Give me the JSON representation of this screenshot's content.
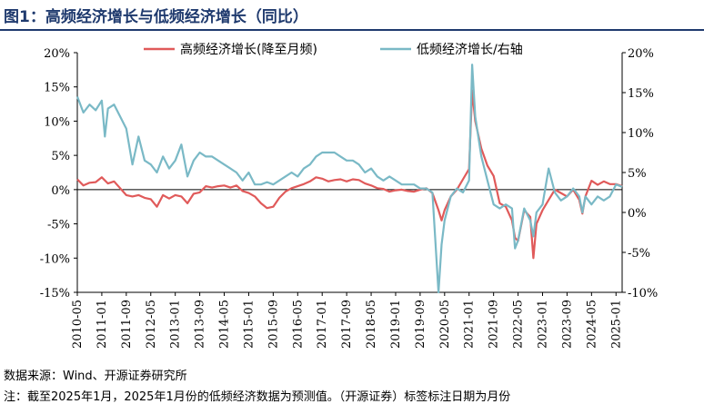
{
  "header": {
    "title": "图1：高频经济增长与低频经济增长（同比）"
  },
  "footer": {
    "source": "数据来源：Wind、开源证券研究所",
    "footnote": "注：截至2025年1月，2025年1月份的低频经济数据为预测值。（开源证券）标签标注日期为月份"
  },
  "chart_data": {
    "type": "line",
    "title": "",
    "xlabel": "",
    "ylabel": "",
    "ylabel_right": "",
    "x_ticks": [
      "2010-05",
      "2011-01",
      "2011-09",
      "2012-05",
      "2013-01",
      "2013-09",
      "2014-05",
      "2015-01",
      "2015-09",
      "2016-05",
      "2017-01",
      "2017-09",
      "2018-05",
      "2019-01",
      "2019-09",
      "2020-05",
      "2021-01",
      "2021-09",
      "2022-05",
      "2023-01",
      "2023-09",
      "2024-05",
      "2025-01"
    ],
    "ylim_left": [
      -15,
      20
    ],
    "ylim_right": [
      -10,
      20
    ],
    "y_ticks_left": [
      -15,
      -10,
      -5,
      0,
      5,
      10,
      15,
      20
    ],
    "y_ticks_right": [
      -10,
      -5,
      0,
      5,
      10,
      15,
      20
    ],
    "y_tick_labels_left": [
      "-15%",
      "-10%",
      "-5%",
      "0%",
      "5%",
      "10%",
      "15%",
      "20%"
    ],
    "y_tick_labels_right": [
      "-10%",
      "-5%",
      "0%",
      "5%",
      "10%",
      "15%",
      "20%"
    ],
    "grid": false,
    "legend_position": "top",
    "series": [
      {
        "name": "高频经济增长(降至月频)",
        "axis": "left",
        "color": "#e05a5a",
        "points": [
          [
            "2010-05",
            1.5
          ],
          [
            "2010-07",
            0.6
          ],
          [
            "2010-09",
            1.0
          ],
          [
            "2010-11",
            1.1
          ],
          [
            "2011-01",
            1.8
          ],
          [
            "2011-03",
            0.9
          ],
          [
            "2011-05",
            1.2
          ],
          [
            "2011-07",
            0.2
          ],
          [
            "2011-09",
            -0.8
          ],
          [
            "2011-11",
            -1.0
          ],
          [
            "2012-01",
            -0.8
          ],
          [
            "2012-03",
            -1.2
          ],
          [
            "2012-05",
            -1.4
          ],
          [
            "2012-07",
            -2.5
          ],
          [
            "2012-09",
            -0.8
          ],
          [
            "2012-11",
            -1.3
          ],
          [
            "2013-01",
            -0.8
          ],
          [
            "2013-03",
            -1.0
          ],
          [
            "2013-05",
            -2.0
          ],
          [
            "2013-07",
            -0.6
          ],
          [
            "2013-09",
            -0.4
          ],
          [
            "2013-11",
            0.5
          ],
          [
            "2014-01",
            0.3
          ],
          [
            "2014-03",
            0.5
          ],
          [
            "2014-05",
            0.6
          ],
          [
            "2014-07",
            0.3
          ],
          [
            "2014-09",
            0.6
          ],
          [
            "2014-11",
            -0.2
          ],
          [
            "2015-01",
            -0.5
          ],
          [
            "2015-03",
            -1.0
          ],
          [
            "2015-05",
            -2.0
          ],
          [
            "2015-07",
            -2.7
          ],
          [
            "2015-09",
            -2.5
          ],
          [
            "2015-11",
            -1.2
          ],
          [
            "2016-01",
            -0.3
          ],
          [
            "2016-03",
            0.2
          ],
          [
            "2016-05",
            0.5
          ],
          [
            "2016-07",
            0.8
          ],
          [
            "2016-09",
            1.2
          ],
          [
            "2016-11",
            1.8
          ],
          [
            "2017-01",
            1.6
          ],
          [
            "2017-03",
            1.2
          ],
          [
            "2017-05",
            1.4
          ],
          [
            "2017-07",
            1.5
          ],
          [
            "2017-09",
            1.2
          ],
          [
            "2017-11",
            1.5
          ],
          [
            "2018-01",
            1.4
          ],
          [
            "2018-03",
            0.9
          ],
          [
            "2018-05",
            0.6
          ],
          [
            "2018-07",
            0.2
          ],
          [
            "2018-09",
            0.1
          ],
          [
            "2018-11",
            -0.3
          ],
          [
            "2019-01",
            -0.1
          ],
          [
            "2019-03",
            0.0
          ],
          [
            "2019-05",
            -0.2
          ],
          [
            "2019-07",
            -0.3
          ],
          [
            "2019-09",
            0.0
          ],
          [
            "2019-11",
            0.2
          ],
          [
            "2020-01",
            -0.5
          ],
          [
            "2020-03",
            -3.0
          ],
          [
            "2020-04",
            -4.5
          ],
          [
            "2020-05",
            -3.0
          ],
          [
            "2020-07",
            -1.0
          ],
          [
            "2020-09",
            0.0
          ],
          [
            "2020-11",
            1.5
          ],
          [
            "2021-01",
            3.0
          ],
          [
            "2021-02",
            14.5
          ],
          [
            "2021-03",
            10.0
          ],
          [
            "2021-05",
            6.0
          ],
          [
            "2021-07",
            3.5
          ],
          [
            "2021-09",
            2.0
          ],
          [
            "2021-11",
            -2.0
          ],
          [
            "2022-01",
            -2.5
          ],
          [
            "2022-03",
            -4.5
          ],
          [
            "2022-04",
            -7.0
          ],
          [
            "2022-05",
            -7.5
          ],
          [
            "2022-07",
            -3.0
          ],
          [
            "2022-09",
            -4.0
          ],
          [
            "2022-10",
            -10.0
          ],
          [
            "2022-11",
            -5.0
          ],
          [
            "2023-01",
            -3.0
          ],
          [
            "2023-03",
            -1.5
          ],
          [
            "2023-05",
            0.0
          ],
          [
            "2023-07",
            -0.5
          ],
          [
            "2023-09",
            -1.0
          ],
          [
            "2023-11",
            0.0
          ],
          [
            "2024-01",
            -1.5
          ],
          [
            "2024-02",
            -3.5
          ],
          [
            "2024-03",
            -1.0
          ],
          [
            "2024-05",
            1.3
          ],
          [
            "2024-07",
            0.7
          ],
          [
            "2024-09",
            1.2
          ],
          [
            "2024-11",
            0.8
          ],
          [
            "2025-01",
            0.8
          ],
          [
            "2025-03",
            0.5
          ]
        ]
      },
      {
        "name": "低频经济增长/右轴",
        "axis": "right",
        "color": "#7ab9c6",
        "points": [
          [
            "2010-05",
            14.5
          ],
          [
            "2010-07",
            12.5
          ],
          [
            "2010-09",
            13.5
          ],
          [
            "2010-11",
            12.8
          ],
          [
            "2011-01",
            14.0
          ],
          [
            "2011-02",
            9.5
          ],
          [
            "2011-03",
            13.0
          ],
          [
            "2011-05",
            13.5
          ],
          [
            "2011-07",
            12.0
          ],
          [
            "2011-09",
            10.5
          ],
          [
            "2011-11",
            6.0
          ],
          [
            "2012-01",
            9.5
          ],
          [
            "2012-03",
            6.5
          ],
          [
            "2012-05",
            6.0
          ],
          [
            "2012-07",
            5.0
          ],
          [
            "2012-09",
            7.0
          ],
          [
            "2012-11",
            5.5
          ],
          [
            "2013-01",
            6.5
          ],
          [
            "2013-03",
            8.5
          ],
          [
            "2013-05",
            4.5
          ],
          [
            "2013-07",
            6.5
          ],
          [
            "2013-09",
            7.5
          ],
          [
            "2013-11",
            7.0
          ],
          [
            "2014-01",
            7.0
          ],
          [
            "2014-03",
            6.5
          ],
          [
            "2014-05",
            6.0
          ],
          [
            "2014-07",
            5.5
          ],
          [
            "2014-09",
            5.0
          ],
          [
            "2014-11",
            4.0
          ],
          [
            "2015-01",
            5.0
          ],
          [
            "2015-03",
            3.5
          ],
          [
            "2015-05",
            3.5
          ],
          [
            "2015-07",
            3.8
          ],
          [
            "2015-09",
            3.5
          ],
          [
            "2015-11",
            4.0
          ],
          [
            "2016-01",
            4.5
          ],
          [
            "2016-03",
            5.0
          ],
          [
            "2016-05",
            4.5
          ],
          [
            "2016-07",
            5.5
          ],
          [
            "2016-09",
            6.0
          ],
          [
            "2016-11",
            7.0
          ],
          [
            "2017-01",
            7.5
          ],
          [
            "2017-03",
            7.5
          ],
          [
            "2017-05",
            7.5
          ],
          [
            "2017-07",
            7.0
          ],
          [
            "2017-09",
            6.5
          ],
          [
            "2017-11",
            6.5
          ],
          [
            "2018-01",
            6.0
          ],
          [
            "2018-03",
            5.0
          ],
          [
            "2018-05",
            5.5
          ],
          [
            "2018-07",
            4.5
          ],
          [
            "2018-09",
            4.0
          ],
          [
            "2018-11",
            4.5
          ],
          [
            "2019-01",
            4.0
          ],
          [
            "2019-03",
            3.5
          ],
          [
            "2019-05",
            3.5
          ],
          [
            "2019-07",
            3.5
          ],
          [
            "2019-09",
            3.0
          ],
          [
            "2019-11",
            3.0
          ],
          [
            "2020-01",
            2.5
          ],
          [
            "2020-03",
            -10.0
          ],
          [
            "2020-04",
            -4.0
          ],
          [
            "2020-05",
            -1.0
          ],
          [
            "2020-07",
            2.0
          ],
          [
            "2020-09",
            3.0
          ],
          [
            "2020-11",
            2.5
          ],
          [
            "2021-01",
            4.0
          ],
          [
            "2021-02",
            18.5
          ],
          [
            "2021-03",
            12.0
          ],
          [
            "2021-05",
            7.0
          ],
          [
            "2021-07",
            4.0
          ],
          [
            "2021-09",
            1.0
          ],
          [
            "2021-11",
            0.5
          ],
          [
            "2022-01",
            1.0
          ],
          [
            "2022-03",
            0.5
          ],
          [
            "2022-04",
            -4.5
          ],
          [
            "2022-05",
            -3.5
          ],
          [
            "2022-07",
            0.5
          ],
          [
            "2022-09",
            -1.0
          ],
          [
            "2022-10",
            -3.0
          ],
          [
            "2022-11",
            0.0
          ],
          [
            "2023-01",
            1.0
          ],
          [
            "2023-03",
            5.5
          ],
          [
            "2023-05",
            2.5
          ],
          [
            "2023-07",
            1.5
          ],
          [
            "2023-09",
            2.0
          ],
          [
            "2023-11",
            3.0
          ],
          [
            "2024-01",
            2.0
          ],
          [
            "2024-02",
            0.0
          ],
          [
            "2024-03",
            2.0
          ],
          [
            "2024-05",
            1.0
          ],
          [
            "2024-07",
            2.0
          ],
          [
            "2024-09",
            1.5
          ],
          [
            "2024-11",
            2.0
          ],
          [
            "2025-01",
            3.5
          ],
          [
            "2025-03",
            3.2
          ]
        ]
      }
    ]
  }
}
